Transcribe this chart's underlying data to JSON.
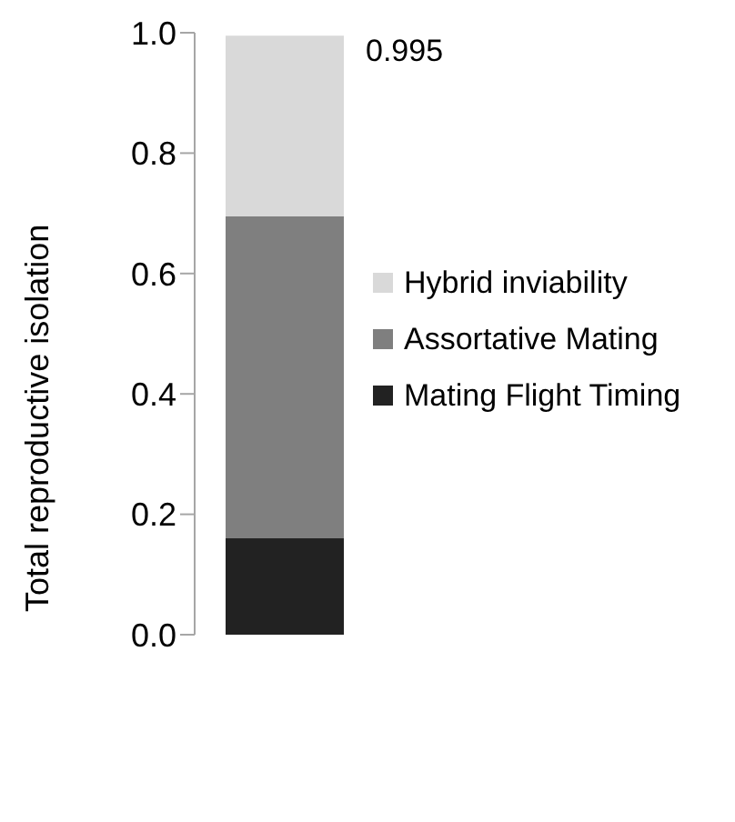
{
  "chart_data": {
    "type": "bar",
    "stacked": true,
    "ylabel": "Total reproductive isolation",
    "categories": [
      null
    ],
    "series": [
      {
        "name": "Mating Flight Timing",
        "color": "#222222",
        "values": [
          0.16
        ]
      },
      {
        "name": "Assortative Mating",
        "color": "#7f7f7f",
        "values": [
          0.535
        ]
      },
      {
        "name": "Hybrid inviability",
        "color": "#d9d9d9",
        "values": [
          0.3
        ]
      }
    ],
    "totals": [
      "0.995"
    ],
    "ylim": [
      0,
      1
    ],
    "yticks": [
      {
        "value": 0,
        "label": "0.0"
      },
      0.2,
      0.4,
      0.6,
      0.8,
      {
        "value": 1,
        "label": "1.0"
      }
    ],
    "legend": "right",
    "tick_labels": "y"
  }
}
